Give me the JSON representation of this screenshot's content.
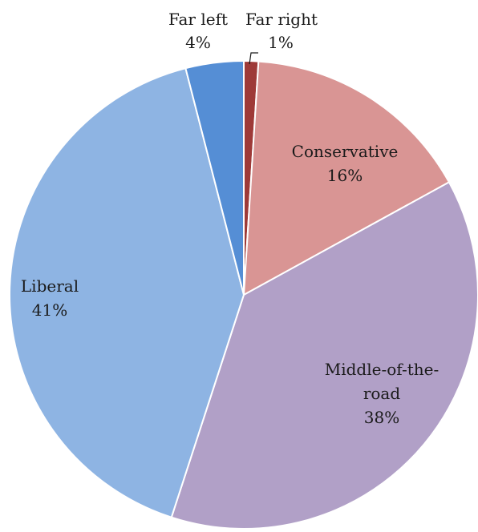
{
  "chart_data": {
    "type": "pie",
    "title": "",
    "start_angle_deg": 0,
    "direction": "clockwise",
    "slices": [
      {
        "name": "Far right",
        "value": 1,
        "label": "1%",
        "color": "#9e3a38"
      },
      {
        "name": "Conservative",
        "value": 16,
        "label": "16%",
        "color": "#d99594"
      },
      {
        "name": "Middle-of-the-road",
        "value": 38,
        "label": "38%",
        "color": "#b1a0c7"
      },
      {
        "name": "Liberal",
        "value": 41,
        "label": "41%",
        "color": "#8eb4e3"
      },
      {
        "name": "Far left",
        "value": 4,
        "label": "4%",
        "color": "#558ed5"
      }
    ],
    "labels": {
      "far_right": {
        "name": "Far right",
        "pct": "1%"
      },
      "conservative": {
        "name": "Conservative",
        "pct": "16%"
      },
      "middle": {
        "name_line1": "Middle-of-the-",
        "name_line2": "road",
        "pct": "38%"
      },
      "liberal": {
        "name": "Liberal",
        "pct": "41%"
      },
      "far_left": {
        "name": "Far left",
        "pct": "4%"
      }
    }
  }
}
